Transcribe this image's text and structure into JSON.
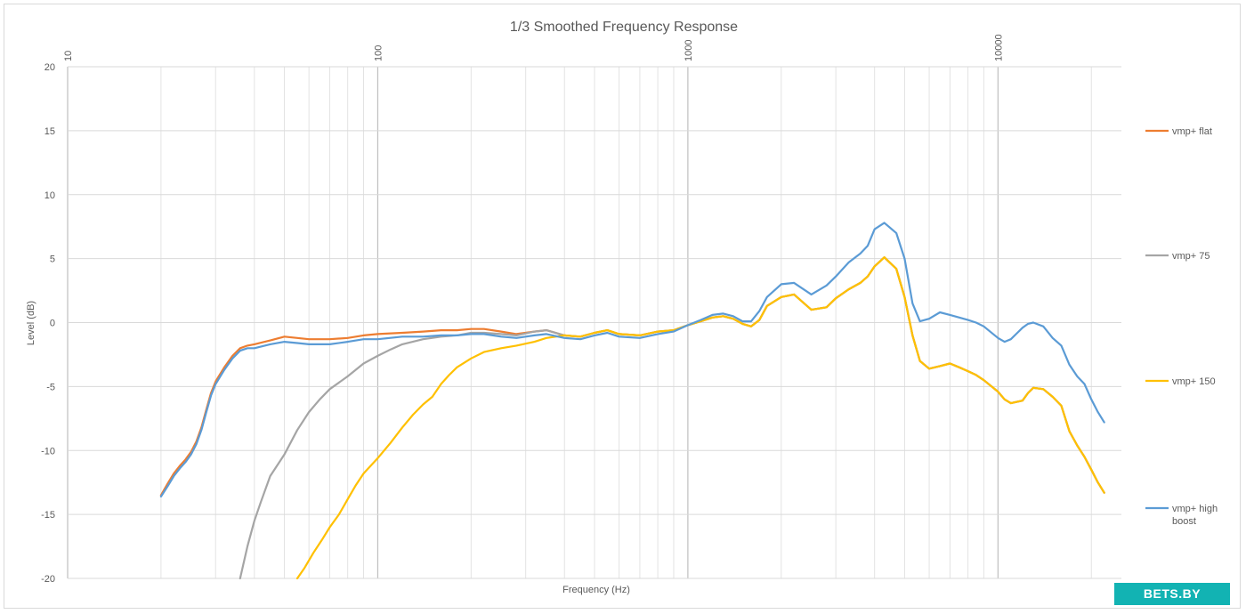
{
  "chart_data": {
    "type": "line",
    "title": "1/3 Smoothed Frequency Response",
    "xlabel": "Frequency (Hz)",
    "ylabel": "Level (dB)",
    "x_scale": "log",
    "xlim": [
      10,
      25000
    ],
    "ylim": [
      -20,
      20
    ],
    "x_ticks": [
      "10",
      "100",
      "1000",
      "10000"
    ],
    "y_ticks": [
      "20",
      "15",
      "10",
      "5",
      "0",
      "-5",
      "-10",
      "-15",
      "-20"
    ],
    "grid": true,
    "legend_position": "right",
    "series": [
      {
        "name": "vmp+ flat",
        "color": "#ed7d31",
        "x": [
          20,
          21,
          22,
          23,
          24,
          25,
          26,
          27,
          28,
          29,
          30,
          32,
          34,
          36,
          38,
          40,
          45,
          50,
          55,
          60,
          70,
          80,
          90,
          100,
          120,
          140,
          160,
          180,
          200,
          220,
          250,
          280,
          320,
          350,
          400,
          450,
          500,
          550,
          600,
          700,
          800,
          900,
          1000,
          1100,
          1200,
          1300,
          1400,
          1500,
          1600,
          1700,
          1800,
          2000,
          2200,
          2500,
          2800,
          3000,
          3300,
          3600,
          3800,
          4000,
          4300,
          4700,
          5000,
          5300,
          5600,
          6000,
          6500,
          7000,
          7500,
          8000,
          8500,
          9000,
          10000,
          10500,
          11000,
          12000,
          12500,
          13000,
          14000,
          15000,
          16000,
          17000,
          18000,
          19000,
          20000,
          21000,
          22000
        ],
        "values": [
          -13.5,
          -12.6,
          -11.8,
          -11.2,
          -10.7,
          -10.1,
          -9.3,
          -8.2,
          -6.8,
          -5.5,
          -4.6,
          -3.5,
          -2.6,
          -2.0,
          -1.8,
          -1.7,
          -1.4,
          -1.1,
          -1.2,
          -1.3,
          -1.3,
          -1.2,
          -1.0,
          -0.9,
          -0.8,
          -0.7,
          -0.6,
          -0.6,
          -0.5,
          -0.5,
          -0.7,
          -0.9,
          -0.7,
          -0.6,
          -1.0,
          -1.1,
          -0.8,
          -0.6,
          -0.9,
          -1.0,
          -0.7,
          -0.6,
          -0.2,
          0.1,
          0.4,
          0.5,
          0.3,
          -0.1,
          -0.3,
          0.2,
          1.3,
          2.0,
          2.2,
          1.0,
          1.2,
          1.9,
          2.6,
          3.1,
          3.6,
          4.4,
          5.1,
          4.2,
          2.0,
          -1.0,
          -3.0,
          -3.6,
          -3.4,
          -3.2,
          -3.5,
          -3.8,
          -4.1,
          -4.5,
          -5.4,
          -6.0,
          -6.3,
          -6.1,
          -5.5,
          -5.1,
          -5.2,
          -5.8,
          -6.5,
          -8.5,
          -9.6,
          -10.5,
          -11.5,
          -12.5,
          -13.3
        ]
      },
      {
        "name": "vmp+ 75",
        "color": "#a5a5a5",
        "x": [
          36,
          38,
          40,
          42,
          45,
          50,
          55,
          60,
          65,
          70,
          80,
          90,
          100,
          110,
          120,
          140,
          160,
          180,
          200,
          220,
          250,
          280,
          320,
          350,
          400,
          450,
          500,
          550,
          600,
          700,
          800,
          900,
          1000,
          1100,
          1200,
          1300,
          1400,
          1500,
          1600,
          1700,
          1800,
          2000,
          2200,
          2500,
          2800,
          3000,
          3300,
          3600,
          3800,
          4000,
          4300,
          4700,
          5000,
          5300,
          5600,
          6000,
          6500,
          7000,
          7500,
          8000,
          8500,
          9000,
          10000,
          10500,
          11000,
          12000,
          12500,
          13000,
          14000,
          15000,
          16000,
          17000,
          18000,
          19000,
          20000,
          21000,
          22000
        ],
        "values": [
          -20.0,
          -17.5,
          -15.5,
          -14.0,
          -12.0,
          -10.3,
          -8.4,
          -7.0,
          -6.0,
          -5.2,
          -4.2,
          -3.2,
          -2.6,
          -2.1,
          -1.7,
          -1.3,
          -1.1,
          -1.0,
          -0.8,
          -0.8,
          -0.9,
          -1.0,
          -0.7,
          -0.6,
          -1.0,
          -1.1,
          -0.8,
          -0.6,
          -0.9,
          -1.0,
          -0.7,
          -0.6,
          -0.2,
          0.1,
          0.4,
          0.5,
          0.3,
          -0.1,
          -0.3,
          0.2,
          1.3,
          2.0,
          2.2,
          1.0,
          1.2,
          1.9,
          2.6,
          3.1,
          3.6,
          4.4,
          5.1,
          4.2,
          2.0,
          -1.0,
          -3.0,
          -3.6,
          -3.4,
          -3.2,
          -3.5,
          -3.8,
          -4.1,
          -4.5,
          -5.4,
          -6.0,
          -6.3,
          -6.1,
          -5.5,
          -5.1,
          -5.2,
          -5.8,
          -6.5,
          -8.5,
          -9.6,
          -10.5,
          -11.5,
          -12.5,
          -13.3
        ]
      },
      {
        "name": "vmp+ 150",
        "color": "#ffc000",
        "x": [
          55,
          58,
          62,
          66,
          70,
          75,
          80,
          85,
          90,
          100,
          110,
          120,
          130,
          140,
          150,
          160,
          170,
          180,
          200,
          220,
          250,
          280,
          320,
          350,
          400,
          450,
          500,
          550,
          600,
          700,
          800,
          900,
          1000,
          1100,
          1200,
          1300,
          1400,
          1500,
          1600,
          1700,
          1800,
          2000,
          2200,
          2500,
          2800,
          3000,
          3300,
          3600,
          3800,
          4000,
          4300,
          4700,
          5000,
          5300,
          5600,
          6000,
          6500,
          7000,
          7500,
          8000,
          8500,
          9000,
          10000,
          10500,
          11000,
          12000,
          12500,
          13000,
          14000,
          15000,
          16000,
          17000,
          18000,
          19000,
          20000,
          21000,
          22000
        ],
        "values": [
          -20.0,
          -19.2,
          -18.0,
          -17.0,
          -16.0,
          -15.0,
          -13.8,
          -12.7,
          -11.8,
          -10.6,
          -9.4,
          -8.2,
          -7.2,
          -6.4,
          -5.8,
          -4.8,
          -4.1,
          -3.5,
          -2.8,
          -2.3,
          -2.0,
          -1.8,
          -1.5,
          -1.2,
          -1.0,
          -1.1,
          -0.8,
          -0.6,
          -0.9,
          -1.0,
          -0.7,
          -0.6,
          -0.2,
          0.1,
          0.4,
          0.5,
          0.3,
          -0.1,
          -0.3,
          0.2,
          1.3,
          2.0,
          2.2,
          1.0,
          1.2,
          1.9,
          2.6,
          3.1,
          3.6,
          4.4,
          5.1,
          4.2,
          2.0,
          -1.0,
          -3.0,
          -3.6,
          -3.4,
          -3.2,
          -3.5,
          -3.8,
          -4.1,
          -4.5,
          -5.4,
          -6.0,
          -6.3,
          -6.1,
          -5.5,
          -5.1,
          -5.2,
          -5.8,
          -6.5,
          -8.5,
          -9.6,
          -10.5,
          -11.5,
          -12.5,
          -13.3
        ]
      },
      {
        "name": "vmp+ high boost",
        "color": "#5b9bd5",
        "x": [
          20,
          21,
          22,
          23,
          24,
          25,
          26,
          27,
          28,
          29,
          30,
          32,
          34,
          36,
          38,
          40,
          45,
          50,
          55,
          60,
          70,
          80,
          90,
          100,
          120,
          140,
          160,
          180,
          200,
          220,
          250,
          280,
          320,
          350,
          400,
          450,
          500,
          550,
          600,
          700,
          800,
          900,
          1000,
          1100,
          1200,
          1300,
          1400,
          1500,
          1600,
          1700,
          1800,
          2000,
          2200,
          2500,
          2800,
          3000,
          3300,
          3600,
          3800,
          4000,
          4300,
          4700,
          5000,
          5300,
          5600,
          6000,
          6500,
          7000,
          7500,
          8000,
          8500,
          9000,
          10000,
          10500,
          11000,
          12000,
          12500,
          13000,
          14000,
          15000,
          16000,
          17000,
          18000,
          19000,
          20000,
          21000,
          22000
        ],
        "values": [
          -13.6,
          -12.8,
          -12.0,
          -11.4,
          -10.9,
          -10.3,
          -9.5,
          -8.4,
          -7.0,
          -5.7,
          -4.8,
          -3.7,
          -2.8,
          -2.2,
          -2.0,
          -2.0,
          -1.7,
          -1.5,
          -1.6,
          -1.7,
          -1.7,
          -1.5,
          -1.3,
          -1.3,
          -1.1,
          -1.1,
          -1.0,
          -1.0,
          -0.9,
          -0.9,
          -1.1,
          -1.2,
          -1.0,
          -0.9,
          -1.2,
          -1.3,
          -1.0,
          -0.8,
          -1.1,
          -1.2,
          -0.9,
          -0.7,
          -0.2,
          0.2,
          0.6,
          0.7,
          0.5,
          0.1,
          0.1,
          0.9,
          2.0,
          3.0,
          3.1,
          2.2,
          2.9,
          3.6,
          4.7,
          5.4,
          6.0,
          7.3,
          7.8,
          7.0,
          5.0,
          1.5,
          0.1,
          0.3,
          0.8,
          0.6,
          0.4,
          0.2,
          0.0,
          -0.3,
          -1.2,
          -1.5,
          -1.3,
          -0.4,
          -0.1,
          0.0,
          -0.3,
          -1.2,
          -1.8,
          -3.3,
          -4.2,
          -4.8,
          -6.0,
          -7.0,
          -7.8
        ]
      }
    ]
  },
  "watermark": "BETS.BY"
}
